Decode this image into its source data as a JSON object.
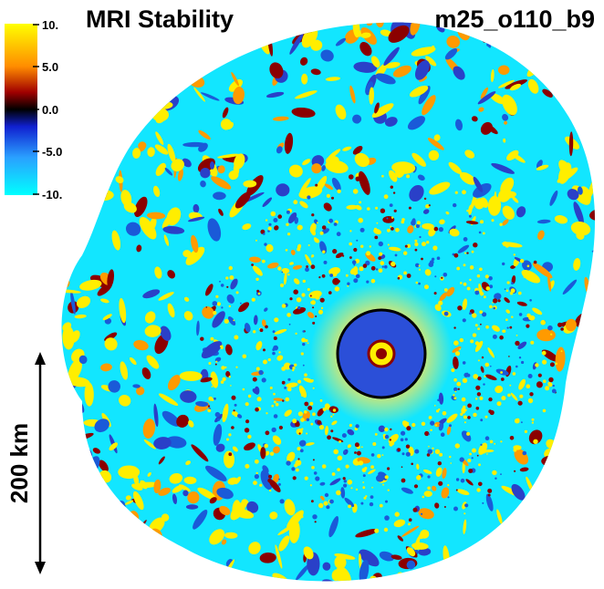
{
  "title": "MRI Stability",
  "run_id": "m25_o110_b9",
  "colorbar": {
    "ticks": [
      "10.",
      "5.0",
      "0.0",
      "-5.0",
      "-10."
    ],
    "colors": {
      "max": "#ffff00",
      "upper": "#ff8c00",
      "mid_positive": "#a00000",
      "zero": "#000000",
      "mid_negative": "#1020d0",
      "lower": "#2aa0ff",
      "min": "#00ffff"
    }
  },
  "scale_bar": {
    "label": "200 km"
  },
  "image_description_colors": {
    "background": "#ffffff",
    "field_base": "#00e8ff",
    "positive_patch": "#ffee00",
    "dark_patch": "#8b0000",
    "ring": "#000000"
  }
}
